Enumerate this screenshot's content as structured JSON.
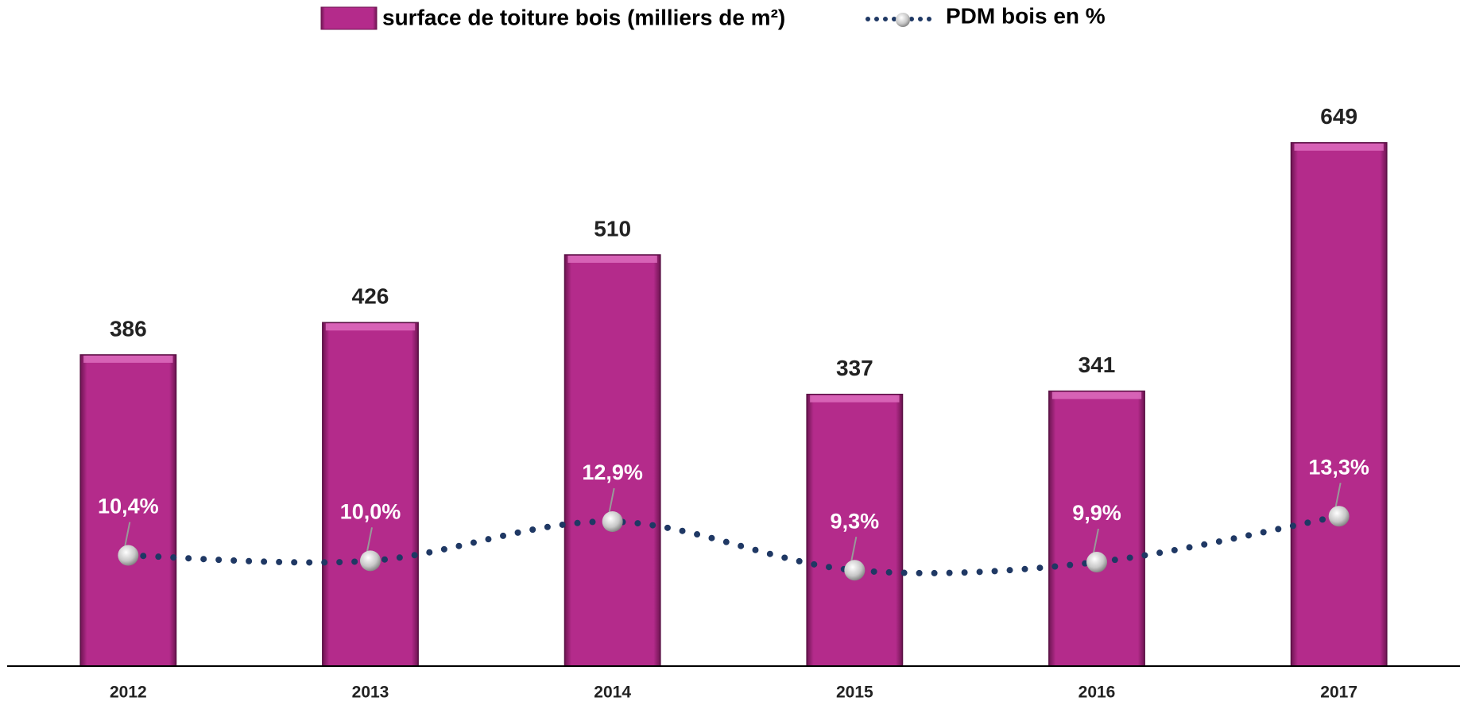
{
  "chart_data": {
    "type": "bar-line",
    "categories": [
      "2012",
      "2013",
      "2014",
      "2015",
      "2016",
      "2017"
    ],
    "series": [
      {
        "name": "surface de toiture bois (milliers de m²)",
        "type": "bar",
        "color": "#b42b8b",
        "values": [
          386,
          426,
          510,
          337,
          341,
          649
        ]
      },
      {
        "name": "PDM bois en %",
        "type": "line",
        "axis": "y2",
        "color": "#1f3864",
        "values": [
          10.4,
          10.0,
          12.9,
          9.3,
          9.9,
          13.3
        ],
        "value_labels": [
          "10,4%",
          "10,0%",
          "12,9%",
          "9,3%",
          "9,9%",
          "13,3%"
        ]
      }
    ],
    "ylim": [
      0,
      700
    ],
    "y2lim": [
      2.2,
      44
    ],
    "legend": "top"
  }
}
